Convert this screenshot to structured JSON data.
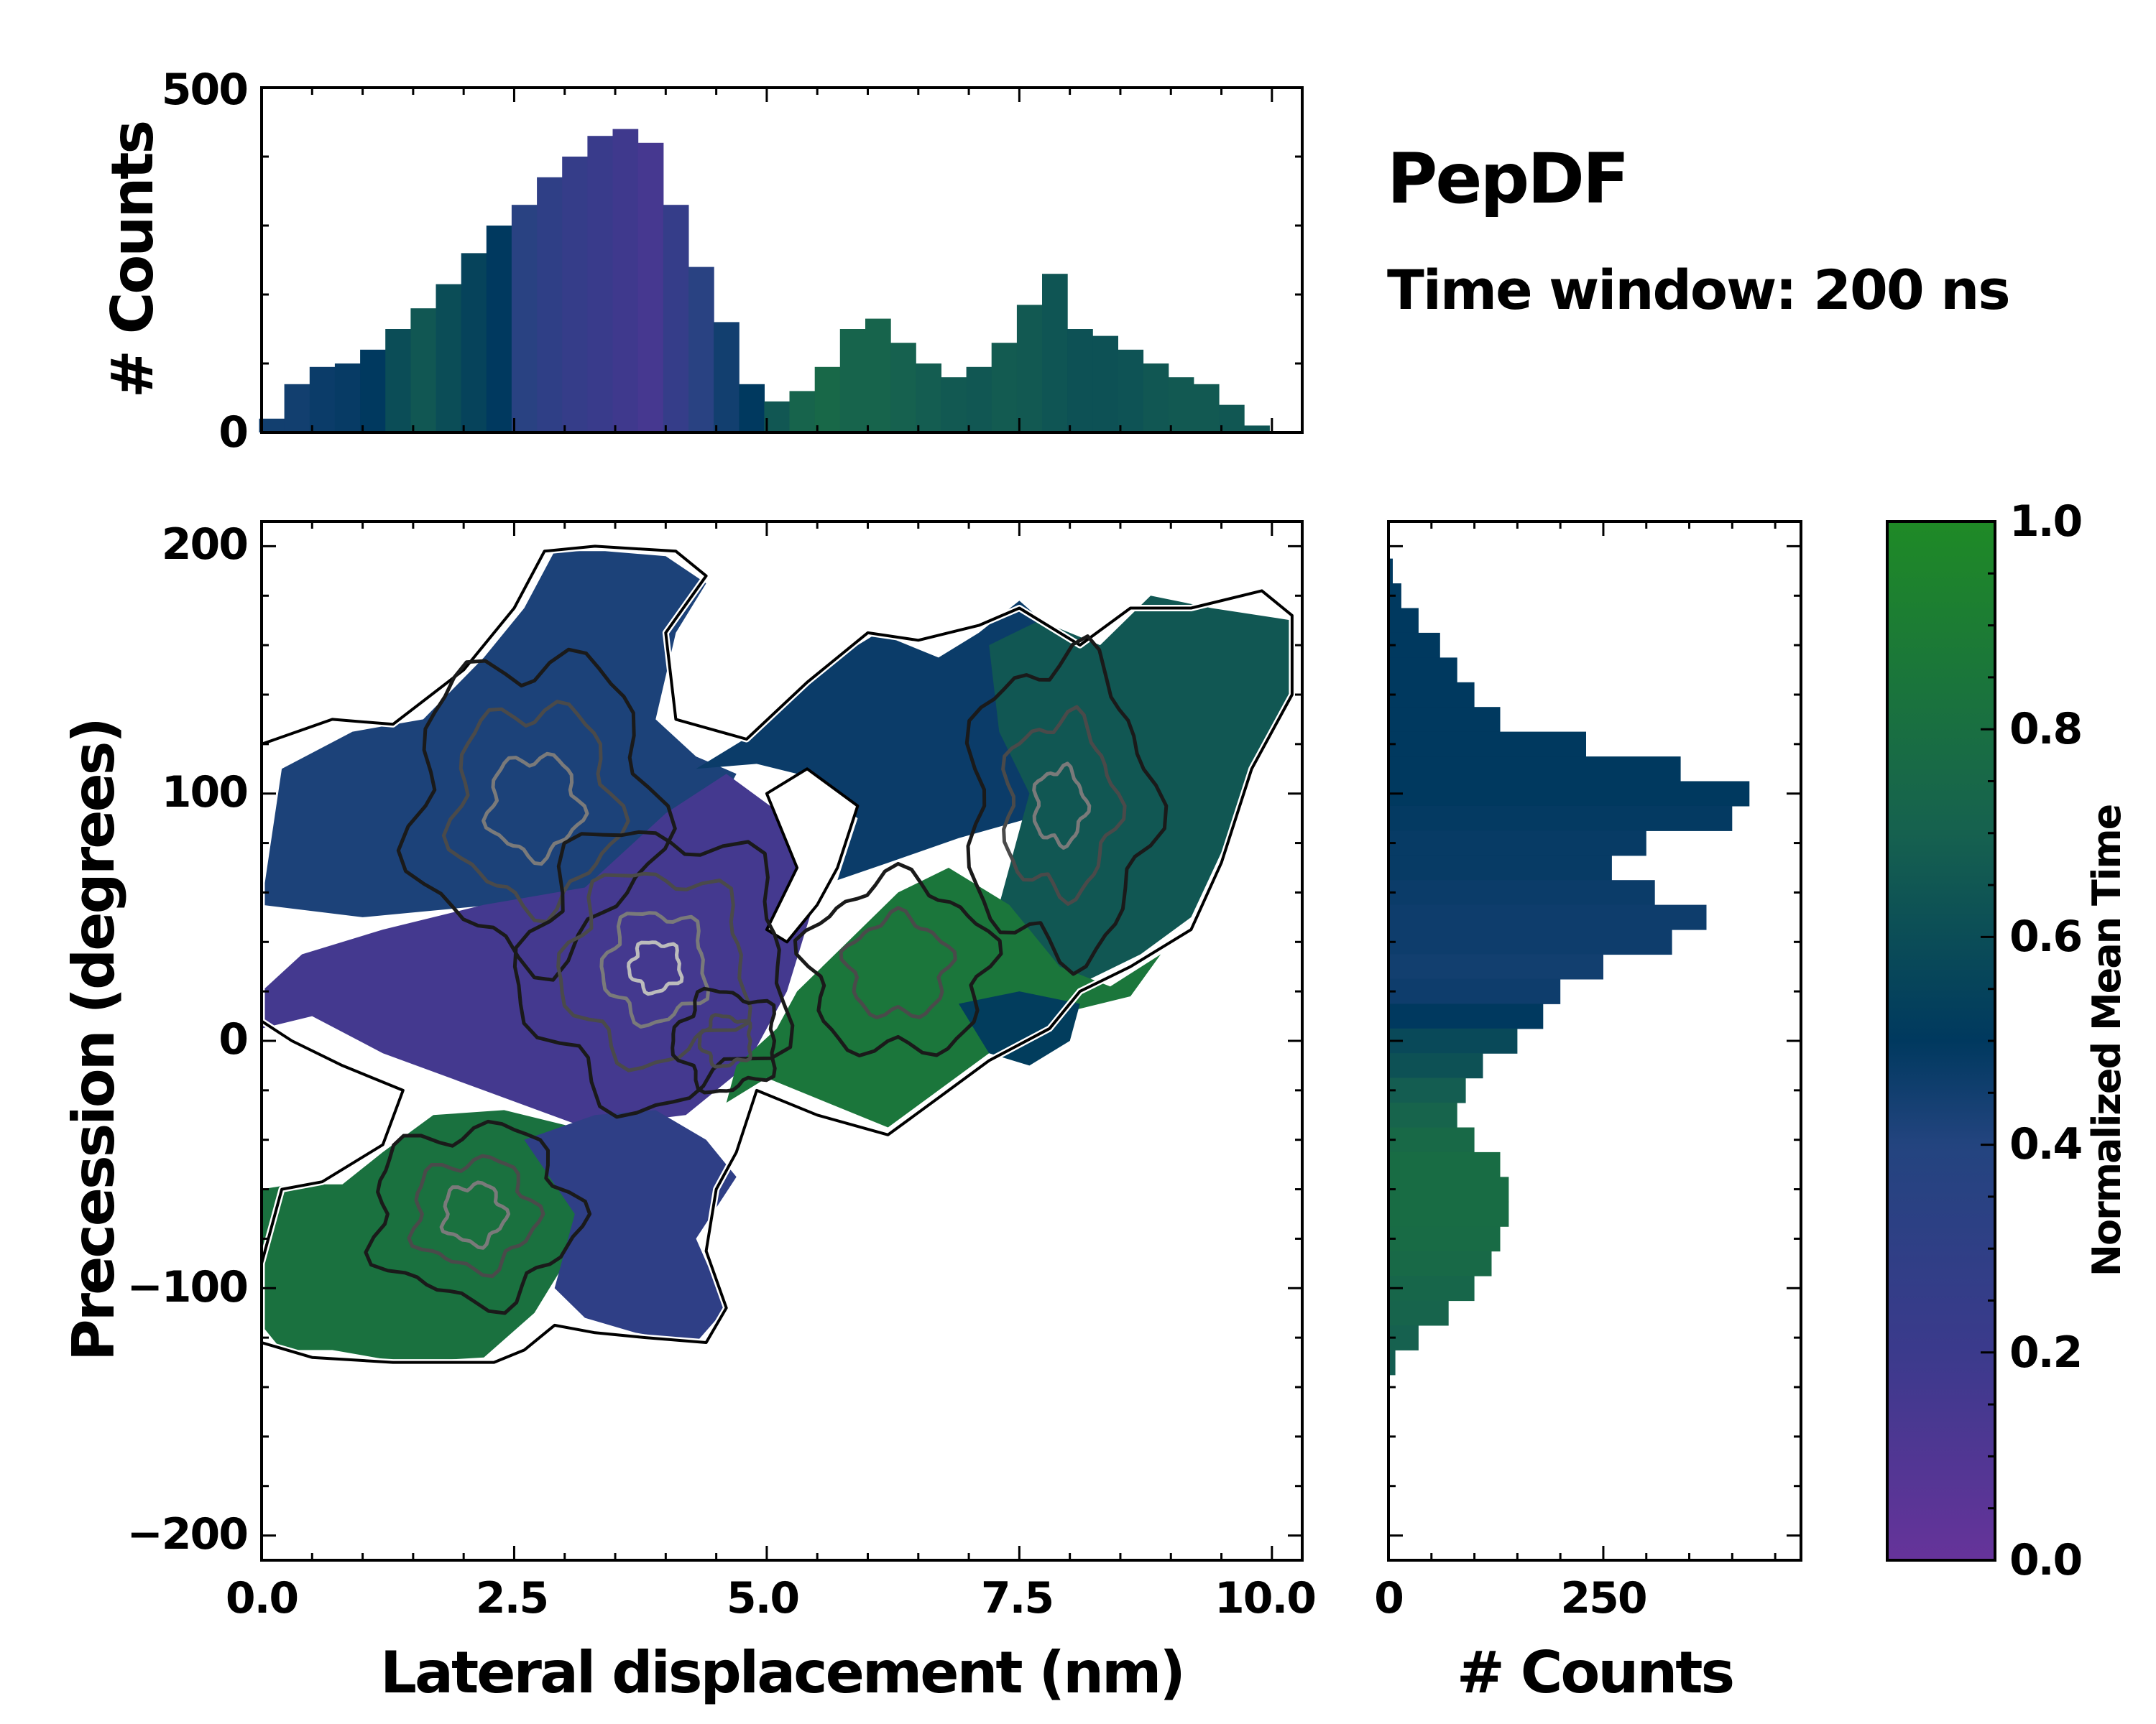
{
  "chart_data": {
    "type": "heatmap",
    "title": "PepDF",
    "subtitle": "Time window: 200 ns",
    "xlabel": "Lateral displacement (nm)",
    "ylabel": "Precession (degrees)",
    "xlim": [
      0,
      10.3
    ],
    "ylim": [
      -210,
      210
    ],
    "xticks": [
      "0.0",
      "2.5",
      "5.0",
      "7.5",
      "10.0"
    ],
    "yticks": [
      "200",
      "100",
      "0",
      "−100",
      "−200"
    ],
    "colorbar": {
      "label": "Normalized Mean Time",
      "ticks": [
        "0.0",
        "0.2",
        "0.4",
        "0.6",
        "0.8",
        "1.0"
      ],
      "colors": [
        "#66339a",
        "#3b3a8c",
        "#23447f",
        "#00395f",
        "#16614f",
        "#1f8a26"
      ]
    },
    "top_histogram": {
      "ylabel": "# Counts",
      "ylim": [
        0,
        500
      ],
      "yticks": [
        "0",
        "500"
      ],
      "bin_x": [
        0.1,
        0.35,
        0.6,
        0.85,
        1.1,
        1.35,
        1.6,
        1.85,
        2.1,
        2.35,
        2.6,
        2.85,
        3.1,
        3.35,
        3.6,
        3.85,
        4.1,
        4.35,
        4.6,
        4.85,
        5.1,
        5.35,
        5.6,
        5.85,
        6.1,
        6.35,
        6.6,
        6.85,
        7.1,
        7.35,
        7.6,
        7.85,
        8.1,
        8.35,
        8.6,
        8.85,
        9.1,
        9.35,
        9.6,
        9.85,
        10.1
      ],
      "counts": [
        20,
        70,
        95,
        100,
        120,
        150,
        180,
        215,
        260,
        300,
        330,
        370,
        400,
        430,
        440,
        420,
        330,
        240,
        160,
        70,
        45,
        60,
        95,
        150,
        165,
        130,
        100,
        80,
        95,
        130,
        185,
        230,
        150,
        140,
        120,
        100,
        80,
        70,
        40,
        10,
        2
      ],
      "time": [
        0.45,
        0.45,
        0.47,
        0.48,
        0.5,
        0.6,
        0.65,
        0.6,
        0.55,
        0.5,
        0.35,
        0.3,
        0.25,
        0.22,
        0.18,
        0.15,
        0.25,
        0.35,
        0.45,
        0.5,
        0.65,
        0.72,
        0.75,
        0.72,
        0.72,
        0.7,
        0.68,
        0.66,
        0.65,
        0.67,
        0.66,
        0.64,
        0.62,
        0.62,
        0.63,
        0.65,
        0.66,
        0.66,
        0.65,
        0.64,
        0.6
      ]
    },
    "right_histogram": {
      "xlabel": "# Counts",
      "xlim": [
        0,
        480
      ],
      "xticks": [
        "0",
        "250"
      ],
      "bin_y": [
        190,
        180,
        170,
        160,
        150,
        140,
        130,
        120,
        110,
        100,
        90,
        80,
        70,
        60,
        50,
        40,
        30,
        20,
        10,
        0,
        -10,
        -20,
        -30,
        -40,
        -50,
        -60,
        -70,
        -80,
        -90,
        -100,
        -110,
        -120,
        -130
      ],
      "counts": [
        5,
        15,
        35,
        60,
        80,
        100,
        130,
        230,
        340,
        420,
        400,
        300,
        260,
        310,
        370,
        330,
        250,
        200,
        180,
        150,
        110,
        90,
        80,
        100,
        130,
        140,
        140,
        130,
        120,
        100,
        70,
        35,
        8
      ],
      "time": [
        0.5,
        0.5,
        0.5,
        0.5,
        0.5,
        0.5,
        0.5,
        0.5,
        0.5,
        0.5,
        0.49,
        0.48,
        0.48,
        0.47,
        0.46,
        0.46,
        0.45,
        0.46,
        0.5,
        0.58,
        0.62,
        0.68,
        0.72,
        0.76,
        0.78,
        0.78,
        0.78,
        0.77,
        0.76,
        0.74,
        0.72,
        0.7,
        0.68
      ]
    }
  }
}
